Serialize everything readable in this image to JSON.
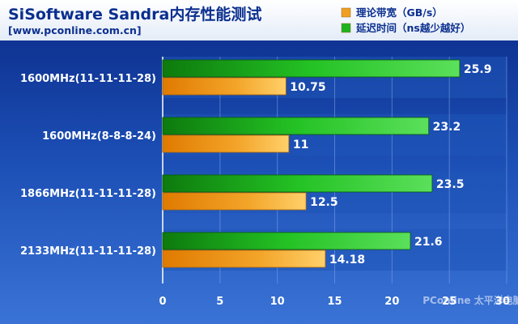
{
  "chart_data": {
    "type": "bar",
    "title": "SiSoftware Sandra内存性能测试",
    "subtitle": "[www.pconline.com.cn]",
    "categories": [
      "1600MHz(11-11-11-28)",
      "1600MHz(8-8-8-24)",
      "1866MHz(11-11-11-28)",
      "2133MHz(11-11-11-28)"
    ],
    "series": [
      {
        "name": "延迟时间（ns越少越好）",
        "values": [
          25.9,
          23.2,
          23.5,
          21.6
        ],
        "color": "#1fb31f"
      },
      {
        "name": "理论带宽（GB/s）",
        "values": [
          10.75,
          11,
          12.5,
          14.18
        ],
        "color": "#f0a020"
      }
    ],
    "value_labels": [
      [
        "25.9",
        "23.2",
        "23.5",
        "21.6"
      ],
      [
        "10.75",
        "11",
        "12.5",
        "14.18"
      ]
    ],
    "legend_order": [
      1,
      0
    ],
    "orientation": "horizontal",
    "xlim": [
      0,
      30
    ],
    "xticks": [
      "0",
      "5",
      "10",
      "15",
      "20",
      "25",
      "30"
    ],
    "grid": true,
    "legend_position": "top-right",
    "colors": {
      "background_top": "#0a2a88",
      "background_bottom": "#3a73d6",
      "plot_band": "#1f56b8",
      "text": "#ffffff"
    },
    "watermark": "PConline 太平洋电脑网"
  }
}
